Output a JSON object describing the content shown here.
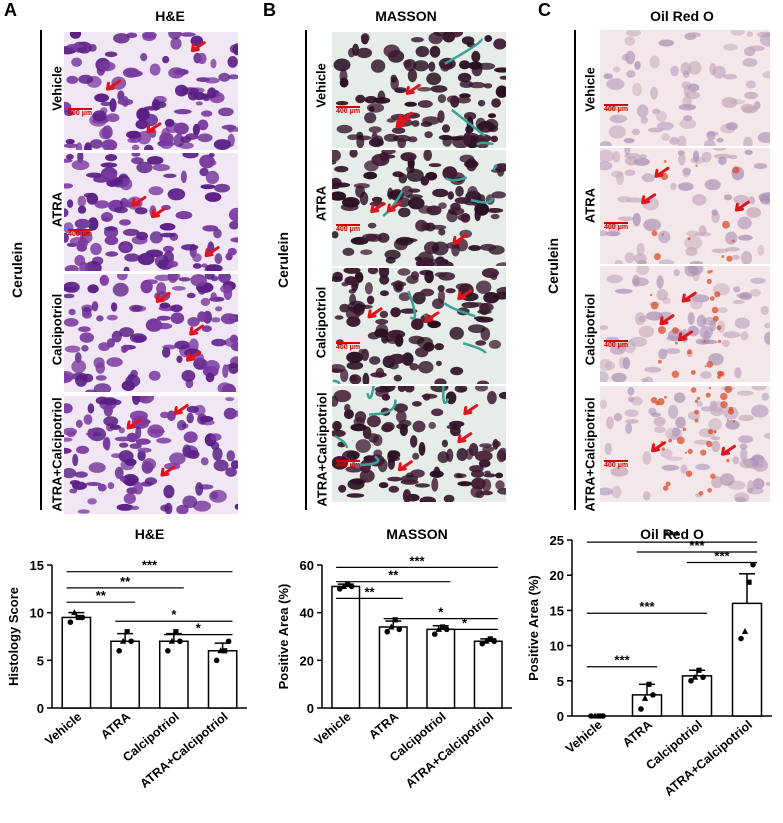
{
  "panels": [
    {
      "letter": "A",
      "stain": "H&E",
      "group": "Cerulein",
      "rows": [
        "Vehicle",
        "ATRA",
        "Calcipotriol",
        "ATRA+Calcipotriol"
      ],
      "scale": "400 μm",
      "bg": "#f1e6f3",
      "cell": "#5a1f86",
      "cell2": "#7a3aa0",
      "arrow": "#e0141e"
    },
    {
      "letter": "B",
      "stain": "MASSON",
      "group": "Cerulein",
      "rows": [
        "Vehicle",
        "ATRA",
        "Calcipotriol",
        "ATRA+Calcipotriol"
      ],
      "scale": "400 μm",
      "bg": "#e6ece8",
      "cell": "#2a1022",
      "cell2": "#3f1a32",
      "fiber": "#3aa294",
      "arrow": "#e0141e"
    },
    {
      "letter": "C",
      "stain": "Oil Red O",
      "group": "Cerulein",
      "rows": [
        "Vehicle",
        "ATRA",
        "Calcipotriol",
        "ATRA+Calcipotriol"
      ],
      "scale": "400 μm",
      "bg": "#f3e7ea",
      "cell": "#a98fb4",
      "cell2": "#c4a6b9",
      "lipid": "#d8431e",
      "arrow": "#e0141e"
    }
  ],
  "chart_data": [
    {
      "type": "bar",
      "title": "H&E",
      "ylabel": "Histology Score",
      "ylim": [
        0,
        15
      ],
      "yticks": [
        0,
        5,
        10,
        15
      ],
      "categories": [
        "Vehicle",
        "ATRA",
        "Calcipotriol",
        "ATRA+Calcipotriol"
      ],
      "values": [
        9.5,
        7.0,
        7.0,
        6.0
      ],
      "errors": [
        0.5,
        0.8,
        0.8,
        0.8
      ],
      "points": [
        [
          9,
          10,
          9.5,
          9.5
        ],
        [
          6,
          7,
          8,
          7
        ],
        [
          6,
          7,
          8,
          7
        ],
        [
          5,
          6,
          6,
          7
        ]
      ],
      "markers": [
        "circle",
        "triangle",
        "square",
        "circle"
      ],
      "significance": [
        {
          "from": 0,
          "to": 1,
          "label": "**"
        },
        {
          "from": 0,
          "to": 2,
          "label": "**"
        },
        {
          "from": 0,
          "to": 3,
          "label": "***"
        },
        {
          "from": 1,
          "to": 3,
          "label": "*"
        },
        {
          "from": 2,
          "to": 3,
          "label": "*"
        }
      ]
    },
    {
      "type": "bar",
      "title": "MASSON",
      "ylabel": "Positive Area (%)",
      "ylim": [
        0,
        60
      ],
      "yticks": [
        0,
        20,
        40,
        60
      ],
      "categories": [
        "Vehicle",
        "ATRA",
        "Calcipotriol",
        "ATRA+Calcipotriol"
      ],
      "values": [
        51,
        34,
        33,
        28
      ],
      "errors": [
        1,
        2.5,
        1.5,
        1
      ],
      "points": [
        [
          50,
          51,
          52,
          51
        ],
        [
          32,
          34,
          37,
          33
        ],
        [
          31,
          33,
          34,
          33
        ],
        [
          27,
          28,
          29,
          28
        ]
      ],
      "markers": [
        "circle",
        "triangle",
        "square",
        "circle"
      ],
      "significance": [
        {
          "from": 0,
          "to": 1,
          "label": "**"
        },
        {
          "from": 0,
          "to": 2,
          "label": "**"
        },
        {
          "from": 0,
          "to": 3,
          "label": "***"
        },
        {
          "from": 1,
          "to": 3,
          "label": "*"
        },
        {
          "from": 2,
          "to": 3,
          "label": "*"
        }
      ]
    },
    {
      "type": "bar",
      "title": "Oil Red O",
      "ylabel": "Positive Area (%)",
      "ylim": [
        0,
        25
      ],
      "yticks": [
        0,
        5,
        10,
        15,
        20,
        25
      ],
      "categories": [
        "Vehicle",
        "ATRA",
        "Calcipotriol",
        "ATRA+Calcipotriol"
      ],
      "values": [
        0,
        3,
        5.7,
        16
      ],
      "errors": [
        0,
        1.5,
        0.8,
        4.2
      ],
      "points": [
        [
          0,
          0,
          0,
          0
        ],
        [
          1,
          2.5,
          4.5,
          3
        ],
        [
          5,
          5.5,
          6.5,
          5.5
        ],
        [
          11,
          12,
          19,
          21.5
        ]
      ],
      "markers": [
        "circle",
        "triangle",
        "square",
        "circle"
      ],
      "significance": [
        {
          "from": 0,
          "to": 1,
          "label": "***"
        },
        {
          "from": 0,
          "to": 2,
          "label": "***"
        },
        {
          "from": 0,
          "to": 3,
          "label": "***"
        },
        {
          "from": 1,
          "to": 3,
          "label": "***"
        },
        {
          "from": 2,
          "to": 3,
          "label": "***"
        }
      ]
    }
  ]
}
